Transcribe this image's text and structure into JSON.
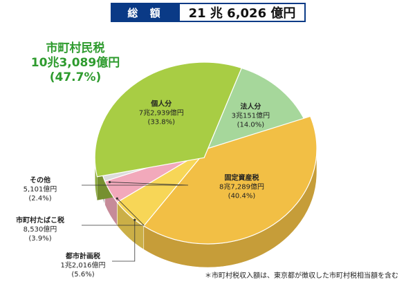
{
  "header": {
    "label": "総 額",
    "value": "21 兆 6,026 億円"
  },
  "group": {
    "name": "市町村民税",
    "amount": "10兆3,089億円",
    "pct": "(47.7%)",
    "color": "#5fba4f",
    "share": 47.7
  },
  "chart_data": {
    "type": "pie",
    "unit": "億円",
    "slices": [
      {
        "name": "法人分",
        "value": 30151,
        "amount": "3兆151億円",
        "pct": "(14.0%)",
        "share": 14.0,
        "color": "#a6d79b",
        "group": "市町村民税"
      },
      {
        "name": "固定資産税",
        "value": 87289,
        "amount": "8兆7,289億円",
        "pct": "(40.4%)",
        "share": 40.4,
        "color": "#f2bf45"
      },
      {
        "name": "都市計画税",
        "value": 12016,
        "amount": "1兆2,016億円",
        "pct": "(5.6%)",
        "share": 5.6,
        "color": "#f7d657"
      },
      {
        "name": "市町村たばこ税",
        "value": 8530,
        "amount": "8,530億円",
        "pct": "(3.9%)",
        "share": 3.9,
        "color": "#f2a9bb"
      },
      {
        "name": "その他",
        "value": 5101,
        "amount": "5,101億円",
        "pct": "(2.4%)",
        "share": 2.4,
        "color": "#dcdcdc"
      },
      {
        "name": "個人分",
        "value": 72939,
        "amount": "7兆2,939億円",
        "pct": "(33.8%)",
        "share": 33.8,
        "color": "#a8cd44",
        "group": "市町村民税"
      }
    ]
  },
  "footnote": "＊市町村税収入額は、東京都が徴収した市町村税相当額を含む"
}
